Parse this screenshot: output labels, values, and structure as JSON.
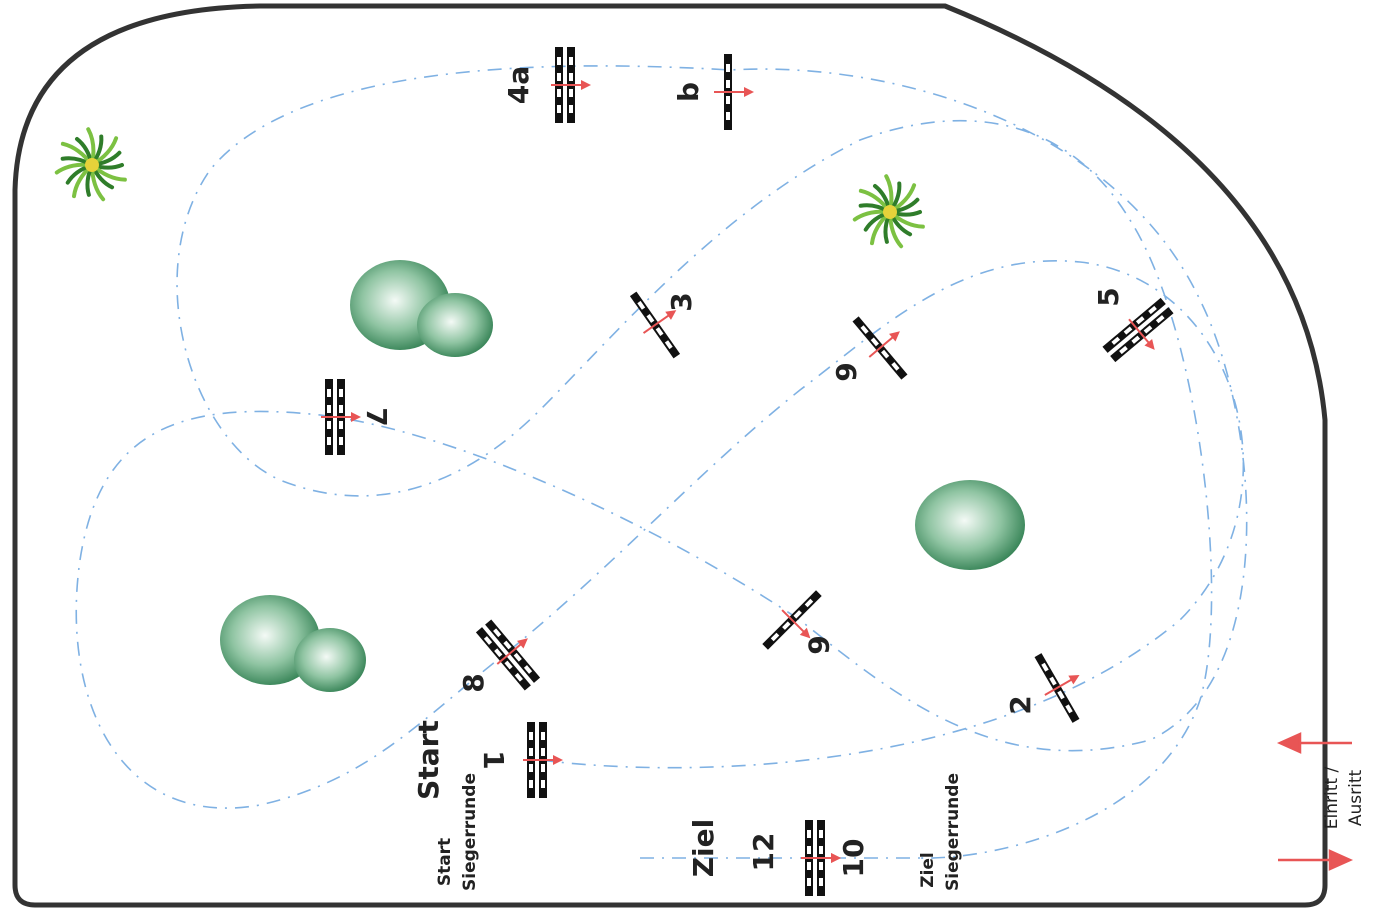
{
  "obstacles": [
    {
      "label": "4a"
    },
    {
      "label": "b"
    },
    {
      "label": "3"
    },
    {
      "label": "5"
    },
    {
      "label": "9"
    },
    {
      "label": "7"
    },
    {
      "label": "6"
    },
    {
      "label": "2"
    },
    {
      "label": "8"
    },
    {
      "label": "1"
    },
    {
      "label": "12"
    },
    {
      "label": "10"
    }
  ],
  "start": "Start",
  "start_jump_off": [
    "Start",
    "Siegerrunde"
  ],
  "finish": "Ziel",
  "finish_jump_off": [
    "Ziel",
    "Siegerrunde"
  ],
  "entrance": [
    "Einritt /",
    "Ausritt"
  ]
}
